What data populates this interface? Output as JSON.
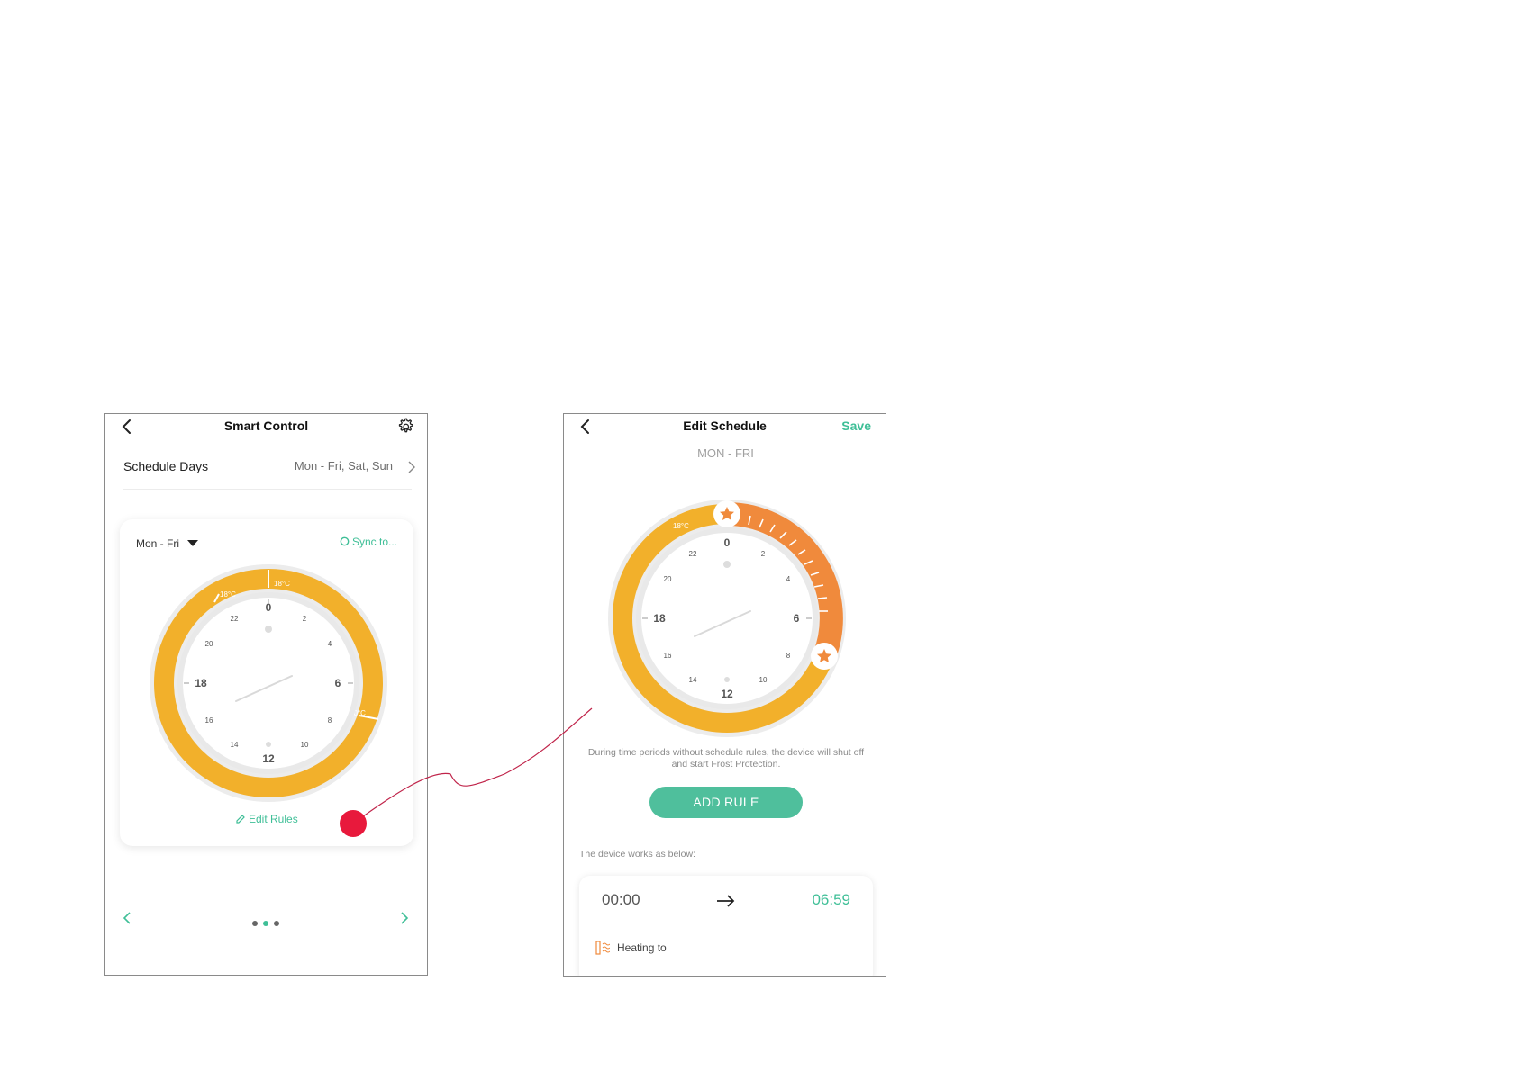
{
  "colors": {
    "accent_green": "#3fbf97",
    "heating_yellow": "#f2b02b",
    "heating_orange": "#f08a3c",
    "annotation_red": "#e8193c"
  },
  "smart_control": {
    "title": "Smart Control",
    "back_icon": "chevron-left-icon",
    "settings_icon": "gear-icon",
    "schedule_days_label": "Schedule Days",
    "schedule_days_value": "Mon - Fri, Sat, Sun",
    "card": {
      "day_selector": "Mon - Fri",
      "sync_label": "Sync to...",
      "edit_rules_label": "Edit Rules",
      "clock_labels": {
        "top": "0",
        "right": "6",
        "bottom": "12",
        "left": "18",
        "h2": "2",
        "h4": "4",
        "h8": "8",
        "h10": "10",
        "h14": "14",
        "h16": "16",
        "h20": "20",
        "h22": "22"
      },
      "segment_temps": [
        "18°C",
        "18°C",
        "20°C"
      ]
    },
    "pager": {
      "pages": 3,
      "current": 2
    }
  },
  "edit_schedule": {
    "title": "Edit Schedule",
    "save_label": "Save",
    "subtitle": "MON - FRI",
    "clock_labels": {
      "top": "0",
      "right": "6",
      "bottom": "12",
      "left": "18",
      "h2": "2",
      "h4": "4",
      "h8": "8",
      "h10": "10",
      "h14": "14",
      "h16": "16",
      "h20": "20",
      "h22": "22"
    },
    "segment_temp": "18°C",
    "info_text": "During time periods without schedule rules, the device will shut off and start Frost Protection.",
    "add_rule_label": "ADD RULE",
    "works_label": "The device works as below:",
    "rule": {
      "start": "00:00",
      "end": "06:59",
      "heating_label": "Heating to"
    }
  }
}
